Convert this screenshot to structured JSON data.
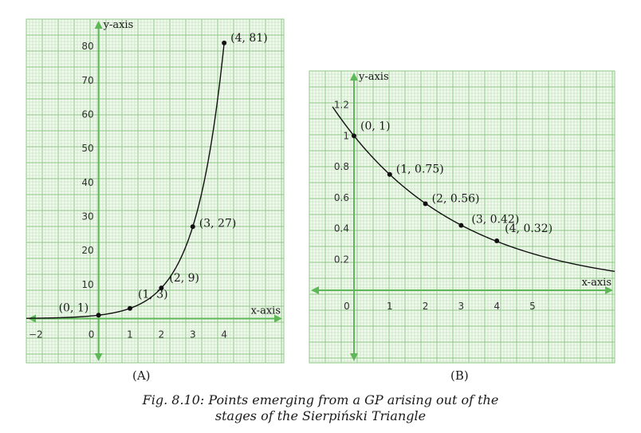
{
  "chart_data": [
    {
      "type": "scatter",
      "panel_label": "(A)",
      "xlabel": "x-axis",
      "ylabel": "y-axis",
      "xlim": [
        -2.3,
        5.9
      ],
      "ylim": [
        -13,
        88
      ],
      "x_ticks": [
        {
          "value": -2,
          "label": "−2"
        },
        {
          "value": 0,
          "label": "0"
        },
        {
          "value": 1,
          "label": "1"
        },
        {
          "value": 2,
          "label": "2"
        },
        {
          "value": 3,
          "label": "3"
        },
        {
          "value": 4,
          "label": "4"
        }
      ],
      "y_ticks": [
        {
          "value": 10,
          "label": "10"
        },
        {
          "value": 20,
          "label": "20"
        },
        {
          "value": 30,
          "label": "30"
        },
        {
          "value": 40,
          "label": "40"
        },
        {
          "value": 50,
          "label": "50"
        },
        {
          "value": 60,
          "label": "60"
        },
        {
          "value": 70,
          "label": "70"
        },
        {
          "value": 80,
          "label": "80"
        }
      ],
      "points": [
        {
          "x": 0,
          "y": 1,
          "label": "(0, 1)"
        },
        {
          "x": 1,
          "y": 3,
          "label": "(1, 3)"
        },
        {
          "x": 2,
          "y": 9,
          "label": "(2, 9)"
        },
        {
          "x": 3,
          "y": 27,
          "label": "(3, 27)"
        },
        {
          "x": 4,
          "y": 81,
          "label": "(4, 81)"
        }
      ],
      "curve": {
        "base": 3,
        "x_from": -2.3,
        "x_to": 4
      },
      "grid": true
    },
    {
      "type": "scatter",
      "panel_label": "(B)",
      "xlabel": "x-axis",
      "ylabel": "y-axis",
      "xlim": [
        -1.25,
        7.3
      ],
      "ylim": [
        -0.47,
        1.42
      ],
      "x_ticks": [
        {
          "value": 0,
          "label": "0"
        },
        {
          "value": 1,
          "label": "1"
        },
        {
          "value": 2,
          "label": "2"
        },
        {
          "value": 3,
          "label": "3"
        },
        {
          "value": 4,
          "label": "4"
        },
        {
          "value": 5,
          "label": "5"
        }
      ],
      "y_ticks": [
        {
          "value": 0.2,
          "label": "0.2"
        },
        {
          "value": 0.4,
          "label": "0.4"
        },
        {
          "value": 0.6,
          "label": "0.6"
        },
        {
          "value": 0.8,
          "label": "0.8"
        },
        {
          "value": 1.0,
          "label": "1"
        },
        {
          "value": 1.2,
          "label": "1.2"
        }
      ],
      "points": [
        {
          "x": 0,
          "y": 1,
          "label": "(0, 1)"
        },
        {
          "x": 1,
          "y": 0.75,
          "label": "(1, 0.75)"
        },
        {
          "x": 2,
          "y": 0.56,
          "label": "(2, 0.56)"
        },
        {
          "x": 3,
          "y": 0.42,
          "label": "(3, 0.42)"
        },
        {
          "x": 4,
          "y": 0.32,
          "label": "(4, 0.32)"
        }
      ],
      "curve": {
        "base": 0.75,
        "x_from": -0.6,
        "x_to": 7.3
      },
      "grid": true
    }
  ],
  "caption": {
    "line1": "Fig. 8.10: Points emerging from a GP arising out of the",
    "line2": "stages of the Sierpiński Triangle"
  },
  "colors": {
    "grid_minor": "#b9ddb1",
    "grid_major": "#8cc784",
    "grid_bg": "#f2faf0",
    "axis": "#5fb858",
    "curve": "#111111"
  }
}
